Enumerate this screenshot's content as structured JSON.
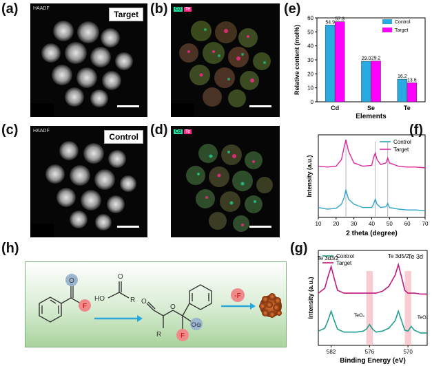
{
  "panels": {
    "a": {
      "label": "(a)",
      "tag": "Target",
      "corner": "HAADF"
    },
    "b": {
      "label": "(b)",
      "legend": [
        "Cd",
        "Te"
      ]
    },
    "c": {
      "label": "(c)",
      "tag": "Control",
      "corner": "HAADF"
    },
    "d": {
      "label": "(d)",
      "legend": [
        "Cd",
        "Te"
      ]
    },
    "e": {
      "label": "(e)"
    },
    "f": {
      "label": "(f)"
    },
    "g": {
      "label": "(g)"
    },
    "h": {
      "label": "(h)",
      "reagent_atoms": {
        "o": "O",
        "f": "F",
        "ho": "HO",
        "r": "R"
      },
      "product_atoms": {
        "o1": "O",
        "o2": "O",
        "r": "R",
        "f": "F",
        "ominus": "O⊖"
      },
      "step": "-F"
    }
  },
  "colors": {
    "control_blue": "#29abe2",
    "target_magenta": "#ff00ff",
    "xrd_control": "#2fa6c9",
    "xrd_target": "#e0249e",
    "xps_control": "#1f9e8e",
    "xps_target": "#c2187e",
    "teo2_band": "#f7b7c2",
    "cd_map": "#22e0a0",
    "te_map": "#ff2a8a"
  },
  "chart_data": [
    {
      "type": "bar",
      "panel": "e",
      "categories": [
        "Cd",
        "Se",
        "Te"
      ],
      "series": [
        {
          "name": "Control",
          "values": [
            54.9,
            29.0,
            16.2
          ]
        },
        {
          "name": "Target",
          "values": [
            57.3,
            29.2,
            13.6
          ]
        }
      ],
      "value_labels": [
        [
          "54.9",
          "29.0",
          "16.2"
        ],
        [
          "57.3",
          "29.2",
          "13.6"
        ]
      ],
      "xlabel": "Elements",
      "ylabel": "Relative content (mol%)",
      "ylim": [
        0,
        60
      ],
      "yticks": [
        0,
        10,
        20,
        30,
        40,
        50,
        60
      ],
      "legend_position": "top-right"
    },
    {
      "type": "line",
      "panel": "f",
      "xlabel": "2 theta (degree)",
      "ylabel": "Intensity (a.u.)",
      "xlim": [
        10,
        70
      ],
      "xticks": [
        10,
        20,
        30,
        40,
        50,
        60,
        70
      ],
      "reference_lines_x": [
        25.5,
        42.0,
        49.0
      ],
      "series": [
        {
          "name": "Control",
          "x": [
            10,
            15,
            20,
            23,
            24.5,
            25.5,
            27,
            30,
            35,
            40,
            41,
            42,
            43,
            45,
            48,
            49,
            50,
            55,
            60,
            65,
            70
          ],
          "y": [
            0.12,
            0.1,
            0.11,
            0.16,
            0.24,
            0.33,
            0.22,
            0.16,
            0.12,
            0.12,
            0.16,
            0.22,
            0.16,
            0.12,
            0.13,
            0.17,
            0.12,
            0.1,
            0.09,
            0.09,
            0.08
          ]
        },
        {
          "name": "Target",
          "x": [
            10,
            15,
            20,
            23,
            24.5,
            25.5,
            27,
            30,
            35,
            40,
            41,
            42,
            43,
            45,
            48,
            49,
            50,
            55,
            60,
            65,
            70
          ],
          "y": [
            0.62,
            0.61,
            0.62,
            0.7,
            0.85,
            0.94,
            0.8,
            0.66,
            0.62,
            0.63,
            0.72,
            0.78,
            0.7,
            0.64,
            0.66,
            0.72,
            0.66,
            0.62,
            0.61,
            0.61,
            0.6
          ]
        }
      ],
      "legend_position": "top-right"
    },
    {
      "type": "line",
      "panel": "g",
      "title": "Te 3d",
      "xlabel": "Binding Energy (eV)",
      "ylabel": "Intensity (a.u.)",
      "xlim": [
        584,
        567
      ],
      "xticks": [
        582,
        576,
        570
      ],
      "reversed_x": true,
      "highlight_bands": [
        [
          576.5,
          575.5
        ],
        [
          570.5,
          569.5
        ]
      ],
      "series": [
        {
          "name": "Control",
          "x": [
            584,
            583,
            582.5,
            582,
            581.5,
            581,
            580,
            579,
            578,
            577,
            576.5,
            576,
            575.5,
            575,
            574,
            573,
            572,
            571.5,
            571,
            570.5,
            570,
            569.5,
            569,
            568,
            567
          ],
          "y": [
            0.15,
            0.18,
            0.26,
            0.36,
            0.26,
            0.17,
            0.14,
            0.14,
            0.14,
            0.15,
            0.17,
            0.22,
            0.17,
            0.14,
            0.15,
            0.18,
            0.26,
            0.36,
            0.26,
            0.16,
            0.15,
            0.2,
            0.16,
            0.13,
            0.13
          ]
        },
        {
          "name": "Target",
          "x": [
            584,
            583,
            582.5,
            582,
            581.5,
            581,
            580,
            579,
            578,
            577,
            576.5,
            576,
            575.5,
            575,
            574,
            573,
            572,
            571.5,
            571,
            570.5,
            570,
            569.5,
            569,
            568,
            567
          ],
          "y": [
            0.55,
            0.6,
            0.72,
            0.83,
            0.7,
            0.58,
            0.55,
            0.55,
            0.55,
            0.55,
            0.55,
            0.55,
            0.55,
            0.55,
            0.57,
            0.62,
            0.74,
            0.85,
            0.72,
            0.58,
            0.55,
            0.55,
            0.55,
            0.54,
            0.54
          ]
        }
      ],
      "annotations": [
        "Te 3d3/2",
        "Te 3d5/2",
        "TeO₂",
        "TeO₂"
      ],
      "legend_position": "top-left"
    }
  ]
}
